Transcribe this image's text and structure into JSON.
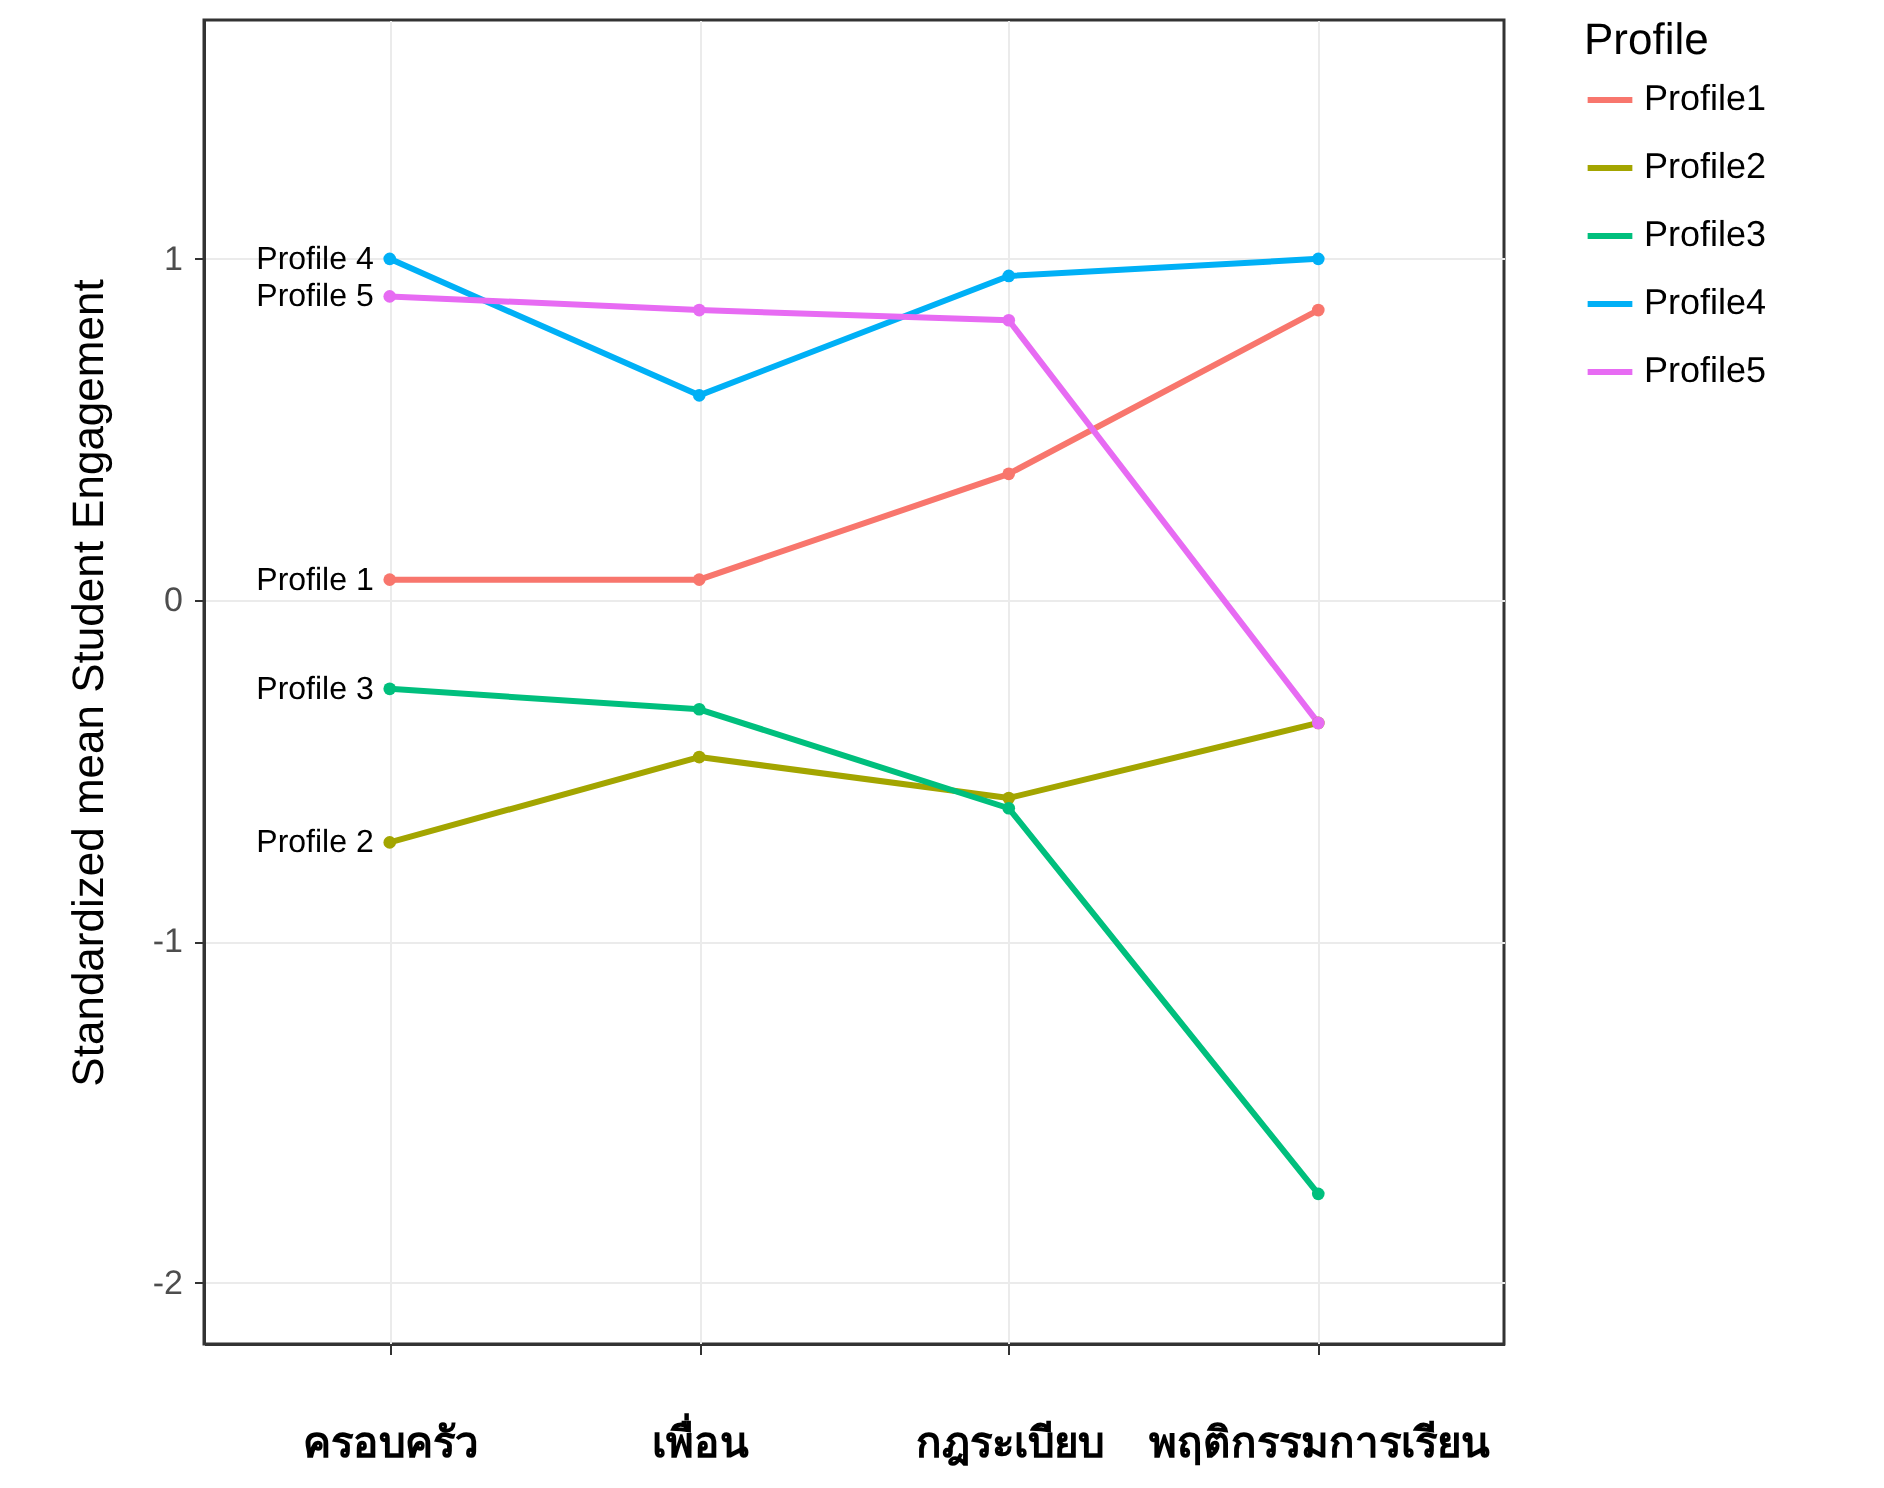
{
  "chart_data": {
    "type": "line",
    "ylabel": "Standardized mean Student Engagement",
    "legend_title": "Profile",
    "legend": "right",
    "grid": true,
    "marker": "circle",
    "line_style": "solid",
    "categories": [
      "ครอบครัว",
      "เพื่อน",
      "กฎระเบียบ",
      "พฤติกรรมการเรียน"
    ],
    "ylim": [
      -2.18,
      1.7
    ],
    "yticks": [
      -2,
      -1,
      0,
      1
    ],
    "series": [
      {
        "name": "Profile1",
        "color": "#f8766d",
        "values": [
          0.06,
          0.06,
          0.37,
          0.85
        ]
      },
      {
        "name": "Profile2",
        "color": "#a3a500",
        "values": [
          -0.71,
          -0.46,
          -0.58,
          -0.36
        ]
      },
      {
        "name": "Profile3",
        "color": "#00bf7d",
        "values": [
          -0.26,
          -0.32,
          -0.61,
          -1.74
        ]
      },
      {
        "name": "Profile4",
        "color": "#00b0f6",
        "values": [
          1.0,
          0.6,
          0.95,
          1.0
        ]
      },
      {
        "name": "Profile5",
        "color": "#e76bf3",
        "values": [
          0.89,
          0.85,
          0.82,
          -0.36
        ]
      }
    ],
    "annotations": [
      {
        "text": "Profile 4",
        "x": "ครอบครัว",
        "y": 1.0
      },
      {
        "text": "Profile 5",
        "x": "ครอบครัว",
        "y": 0.89
      },
      {
        "text": "Profile 1",
        "x": "ครอบครัว",
        "y": 0.06
      },
      {
        "text": "Profile 3",
        "x": "ครอบครัว",
        "y": -0.26
      },
      {
        "text": "Profile 2",
        "x": "ครอบครัว",
        "y": -0.71
      }
    ]
  }
}
